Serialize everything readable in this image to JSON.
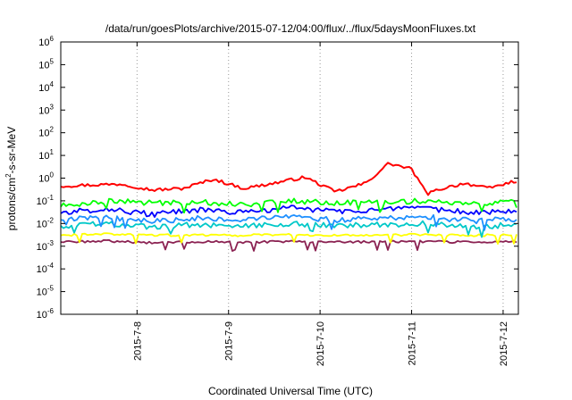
{
  "chart_data": {
    "type": "line",
    "title": "/data/run/goesPlots/archive/2015-07-12/04:00/flux/../flux/5daysMoonFluxes.txt",
    "xlabel": "Coordinated Universal Time (UTC)",
    "ylabel": "protons/cm²-s-sr-MeV",
    "ylabel_parts": {
      "before": "protons/cm",
      "sup": "2",
      "after": "-s-sr-MeV"
    },
    "y_scale": "log",
    "ylim": [
      1e-06,
      1000000.0
    ],
    "y_ticks": [
      {
        "base": "10",
        "exp": "-6",
        "value": 1e-06
      },
      {
        "base": "10",
        "exp": "-5",
        "value": 1e-05
      },
      {
        "base": "10",
        "exp": "-4",
        "value": 0.0001
      },
      {
        "base": "10",
        "exp": "-3",
        "value": 0.001
      },
      {
        "base": "10",
        "exp": "-2",
        "value": 0.01
      },
      {
        "base": "10",
        "exp": "-1",
        "value": 0.1
      },
      {
        "base": "10",
        "exp": "0",
        "value": 1
      },
      {
        "base": "10",
        "exp": "1",
        "value": 10
      },
      {
        "base": "10",
        "exp": "2",
        "value": 100
      },
      {
        "base": "10",
        "exp": "3",
        "value": 1000
      },
      {
        "base": "10",
        "exp": "4",
        "value": 10000
      },
      {
        "base": "10",
        "exp": "5",
        "value": 100000
      },
      {
        "base": "10",
        "exp": "6",
        "value": 1000000
      }
    ],
    "xlim": [
      "2015-07-07T04:00",
      "2015-07-12T04:00"
    ],
    "x_ticks": [
      {
        "label": "2015-7-8",
        "date": "2015-07-08T00:00"
      },
      {
        "label": "2015-7-9",
        "date": "2015-07-09T00:00"
      },
      {
        "label": "2015-7-10",
        "date": "2015-07-10T00:00"
      },
      {
        "label": "2015-7-11",
        "date": "2015-07-11T00:00"
      },
      {
        "label": "2015-7-12",
        "date": "2015-07-12T00:00"
      }
    ],
    "grid": "vertical dotted",
    "series": [
      {
        "color": "#ff0000",
        "x": [
          "2015-07-07T04:00",
          "2015-07-07T12:00",
          "2015-07-07T20:00",
          "2015-07-08T04:00",
          "2015-07-08T12:00",
          "2015-07-08T20:00",
          "2015-07-09T04:00",
          "2015-07-09T12:00",
          "2015-07-09T20:00",
          "2015-07-10T04:00",
          "2015-07-10T12:00",
          "2015-07-10T18:00",
          "2015-07-11T00:00",
          "2015-07-11T04:00",
          "2015-07-11T08:00",
          "2015-07-11T14:00",
          "2015-07-11T20:00",
          "2015-07-12T04:00"
        ],
        "values": [
          0.45,
          0.5,
          0.55,
          0.3,
          0.35,
          0.9,
          0.35,
          0.6,
          1.1,
          0.25,
          0.6,
          4.5,
          2.5,
          0.2,
          0.35,
          0.6,
          0.35,
          0.8
        ]
      },
      {
        "color": "#00ff00",
        "x": [
          "2015-07-07T04:00",
          "2015-07-07T16:00",
          "2015-07-08T04:00",
          "2015-07-08T16:00",
          "2015-07-09T04:00",
          "2015-07-09T16:00",
          "2015-07-10T04:00",
          "2015-07-10T16:00",
          "2015-07-11T04:00",
          "2015-07-11T16:00",
          "2015-07-12T04:00"
        ],
        "values": [
          0.06,
          0.1,
          0.08,
          0.09,
          0.07,
          0.1,
          0.08,
          0.09,
          0.1,
          0.07,
          0.09
        ]
      },
      {
        "color": "#0000ff",
        "x": [
          "2015-07-07T04:00",
          "2015-07-07T16:00",
          "2015-07-08T04:00",
          "2015-07-08T16:00",
          "2015-07-09T04:00",
          "2015-07-09T16:00",
          "2015-07-10T04:00",
          "2015-07-10T16:00",
          "2015-07-11T04:00",
          "2015-07-11T16:00",
          "2015-07-12T04:00"
        ],
        "values": [
          0.03,
          0.045,
          0.025,
          0.04,
          0.03,
          0.05,
          0.035,
          0.04,
          0.045,
          0.03,
          0.04
        ]
      },
      {
        "color": "#1e90ff",
        "x": [
          "2015-07-07T04:00",
          "2015-07-07T16:00",
          "2015-07-08T04:00",
          "2015-07-08T16:00",
          "2015-07-09T04:00",
          "2015-07-09T16:00",
          "2015-07-10T04:00",
          "2015-07-10T16:00",
          "2015-07-11T04:00",
          "2015-07-11T16:00",
          "2015-07-12T04:00"
        ],
        "values": [
          0.015,
          0.02,
          0.012,
          0.018,
          0.015,
          0.02,
          0.014,
          0.017,
          0.02,
          0.013,
          0.016
        ]
      },
      {
        "color": "#00c8c8",
        "x": [
          "2015-07-07T04:00",
          "2015-07-07T16:00",
          "2015-07-08T04:00",
          "2015-07-08T16:00",
          "2015-07-09T04:00",
          "2015-07-09T16:00",
          "2015-07-10T04:00",
          "2015-07-10T16:00",
          "2015-07-11T04:00",
          "2015-07-11T16:00",
          "2015-07-12T04:00"
        ],
        "values": [
          0.008,
          0.01,
          0.007,
          0.009,
          0.008,
          0.01,
          0.008,
          0.009,
          0.01,
          0.007,
          0.009
        ]
      },
      {
        "color": "#ffff00",
        "x": [
          "2015-07-07T04:00",
          "2015-07-07T16:00",
          "2015-07-08T04:00",
          "2015-07-08T16:00",
          "2015-07-09T04:00",
          "2015-07-09T16:00",
          "2015-07-10T04:00",
          "2015-07-10T16:00",
          "2015-07-11T04:00",
          "2015-07-11T16:00",
          "2015-07-12T04:00"
        ],
        "values": [
          0.003,
          0.0035,
          0.003,
          0.0032,
          0.003,
          0.0033,
          0.003,
          0.0031,
          0.0032,
          0.003,
          0.0031
        ]
      },
      {
        "color": "#8b2252",
        "x": [
          "2015-07-07T04:00",
          "2015-07-07T16:00",
          "2015-07-08T04:00",
          "2015-07-08T16:00",
          "2015-07-09T04:00",
          "2015-07-09T16:00",
          "2015-07-10T04:00",
          "2015-07-10T16:00",
          "2015-07-11T04:00",
          "2015-07-11T16:00",
          "2015-07-12T04:00"
        ],
        "values": [
          0.0015,
          0.0017,
          0.0014,
          0.0016,
          0.0015,
          0.0016,
          0.0015,
          0.0016,
          0.0016,
          0.0015,
          0.0016
        ]
      }
    ]
  }
}
